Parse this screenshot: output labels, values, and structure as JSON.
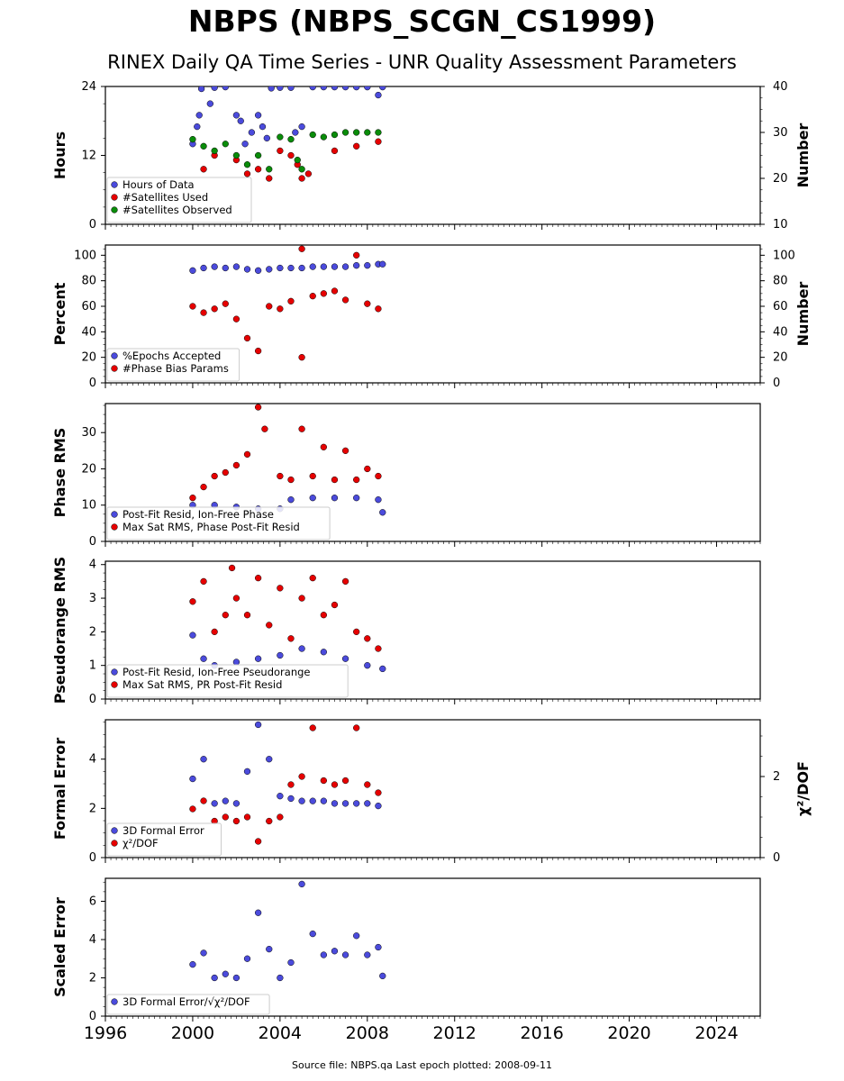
{
  "header": {
    "title": "NBPS (NBPS_SCGN_CS1999)",
    "subtitle": "RINEX Daily QA Time Series - UNR Quality Assessment Parameters"
  },
  "footer": {
    "text": "Source file: NBPS.qa Last epoch plotted: 2008-09-11"
  },
  "colors": {
    "blue": "#4b4bdc",
    "red": "#e60000",
    "green": "#0a8c0a",
    "edge": "#000000"
  },
  "chart_data": [
    {
      "type": "scatter",
      "ylabel": "Hours",
      "y2label": "Number",
      "ylim": [
        0,
        24
      ],
      "y2lim": [
        10,
        40
      ],
      "yticks": [
        "0",
        "12",
        "24"
      ],
      "y2ticks": [
        "10",
        "20",
        "30",
        "40"
      ],
      "legend_position": "lower-left",
      "series": [
        {
          "name": "Hours of Data",
          "color": "#4b4bdc",
          "axis": "left",
          "points": [
            [
              2000.0,
              14
            ],
            [
              2000.2,
              17
            ],
            [
              2000.3,
              19
            ],
            [
              2000.4,
              23.6
            ],
            [
              2000.8,
              21
            ],
            [
              2001.0,
              23.8
            ],
            [
              2001.5,
              23.9
            ],
            [
              2002.0,
              19
            ],
            [
              2002.2,
              18
            ],
            [
              2002.4,
              14
            ],
            [
              2002.7,
              16
            ],
            [
              2003.0,
              19
            ],
            [
              2003.2,
              17
            ],
            [
              2003.4,
              15
            ],
            [
              2003.6,
              23.7
            ],
            [
              2004.0,
              23.8
            ],
            [
              2004.5,
              23.8
            ],
            [
              2004.7,
              16
            ],
            [
              2005.0,
              17
            ],
            [
              2005.5,
              23.9
            ],
            [
              2006.0,
              23.9
            ],
            [
              2006.5,
              23.9
            ],
            [
              2007.0,
              23.9
            ],
            [
              2007.5,
              23.9
            ],
            [
              2008.0,
              23.9
            ],
            [
              2008.5,
              22.5
            ],
            [
              2008.7,
              23.9
            ]
          ]
        },
        {
          "name": "#Satellites Used",
          "color": "#e60000",
          "axis": "right",
          "points": [
            [
              2000.5,
              22
            ],
            [
              2001.0,
              25
            ],
            [
              2002.0,
              24
            ],
            [
              2002.5,
              21
            ],
            [
              2003.0,
              22
            ],
            [
              2003.5,
              20
            ],
            [
              2004.0,
              26
            ],
            [
              2004.5,
              25
            ],
            [
              2004.8,
              23
            ],
            [
              2005.0,
              20
            ],
            [
              2005.3,
              21
            ],
            [
              2006.5,
              26
            ],
            [
              2007.5,
              27
            ],
            [
              2008.5,
              28
            ]
          ]
        },
        {
          "name": "#Satellites Observed",
          "color": "#0a8c0a",
          "axis": "right",
          "points": [
            [
              2000.0,
              28.5
            ],
            [
              2000.5,
              27
            ],
            [
              2001.0,
              26
            ],
            [
              2001.5,
              27.5
            ],
            [
              2002.0,
              25
            ],
            [
              2002.5,
              23
            ],
            [
              2003.0,
              25
            ],
            [
              2003.5,
              22
            ],
            [
              2004.0,
              29
            ],
            [
              2004.5,
              28.5
            ],
            [
              2004.8,
              24
            ],
            [
              2005.0,
              22
            ],
            [
              2005.5,
              29.5
            ],
            [
              2006.0,
              29
            ],
            [
              2006.5,
              29.5
            ],
            [
              2007.0,
              30
            ],
            [
              2007.5,
              30
            ],
            [
              2008.0,
              30
            ],
            [
              2008.5,
              30
            ]
          ]
        }
      ]
    },
    {
      "type": "scatter",
      "ylabel": "Percent",
      "y2label": "Number",
      "ylim": [
        0,
        108
      ],
      "y2lim": [
        0,
        108
      ],
      "yticks": [
        "0",
        "20",
        "40",
        "60",
        "80",
        "100"
      ],
      "y2ticks": [
        "0",
        "20",
        "40",
        "60",
        "80",
        "100"
      ],
      "legend_position": "lower-left",
      "series": [
        {
          "name": "%Epochs Accepted",
          "color": "#4b4bdc",
          "axis": "left",
          "points": [
            [
              2000.0,
              88
            ],
            [
              2000.5,
              90
            ],
            [
              2001.0,
              91
            ],
            [
              2001.5,
              90
            ],
            [
              2002.0,
              91
            ],
            [
              2002.5,
              89
            ],
            [
              2003.0,
              88
            ],
            [
              2003.5,
              89
            ],
            [
              2004.0,
              90
            ],
            [
              2004.5,
              90
            ],
            [
              2005.0,
              90
            ],
            [
              2005.5,
              91
            ],
            [
              2006.0,
              91
            ],
            [
              2006.5,
              91
            ],
            [
              2007.0,
              91
            ],
            [
              2007.5,
              92
            ],
            [
              2008.0,
              92
            ],
            [
              2008.5,
              93
            ],
            [
              2008.7,
              93
            ]
          ]
        },
        {
          "name": "#Phase Bias Params",
          "color": "#e60000",
          "axis": "right",
          "points": [
            [
              2000.0,
              60
            ],
            [
              2000.5,
              55
            ],
            [
              2001.0,
              58
            ],
            [
              2001.5,
              62
            ],
            [
              2002.0,
              50
            ],
            [
              2002.5,
              35
            ],
            [
              2003.0,
              25
            ],
            [
              2003.5,
              60
            ],
            [
              2004.0,
              58
            ],
            [
              2004.5,
              64
            ],
            [
              2005.0,
              20
            ],
            [
              2005.0,
              105
            ],
            [
              2005.5,
              68
            ],
            [
              2006.0,
              70
            ],
            [
              2006.5,
              72
            ],
            [
              2007.0,
              65
            ],
            [
              2007.5,
              100
            ],
            [
              2008.0,
              62
            ],
            [
              2008.5,
              58
            ]
          ]
        }
      ]
    },
    {
      "type": "scatter",
      "ylabel": "Phase RMS",
      "ylim": [
        0,
        38
      ],
      "yticks": [
        "0",
        "10",
        "20",
        "30"
      ],
      "legend_position": "lower-left",
      "series": [
        {
          "name": "Post-Fit Resid, Ion-Free Phase",
          "color": "#4b4bdc",
          "axis": "left",
          "points": [
            [
              2000.0,
              10
            ],
            [
              2001.0,
              10
            ],
            [
              2002.0,
              9.5
            ],
            [
              2003.0,
              9
            ],
            [
              2004.0,
              9
            ],
            [
              2004.5,
              11.5
            ],
            [
              2005.5,
              12
            ],
            [
              2006.5,
              12
            ],
            [
              2007.5,
              12
            ],
            [
              2008.5,
              11.5
            ],
            [
              2008.7,
              8
            ]
          ]
        },
        {
          "name": "Max Sat RMS, Phase Post-Fit Resid",
          "color": "#e60000",
          "axis": "left",
          "points": [
            [
              2000.0,
              12
            ],
            [
              2000.5,
              15
            ],
            [
              2001.0,
              18
            ],
            [
              2001.5,
              19
            ],
            [
              2002.0,
              21
            ],
            [
              2002.5,
              24
            ],
            [
              2003.0,
              37
            ],
            [
              2003.3,
              31
            ],
            [
              2004.0,
              18
            ],
            [
              2004.5,
              17
            ],
            [
              2005.0,
              31
            ],
            [
              2005.5,
              18
            ],
            [
              2006.0,
              26
            ],
            [
              2006.5,
              17
            ],
            [
              2007.0,
              25
            ],
            [
              2007.5,
              17
            ],
            [
              2008.0,
              20
            ],
            [
              2008.5,
              18
            ]
          ]
        }
      ]
    },
    {
      "type": "scatter",
      "ylabel": "Pseudorange RMS",
      "ylim": [
        0,
        4.1
      ],
      "yticks": [
        "0",
        "1",
        "2",
        "3",
        "4"
      ],
      "legend_position": "lower-left",
      "series": [
        {
          "name": "Post-Fit Resid, Ion-Free Pseudorange",
          "color": "#4b4bdc",
          "axis": "left",
          "points": [
            [
              2000.0,
              1.9
            ],
            [
              2000.5,
              1.2
            ],
            [
              2001.0,
              1.0
            ],
            [
              2002.0,
              1.1
            ],
            [
              2003.0,
              1.2
            ],
            [
              2004.0,
              1.3
            ],
            [
              2005.0,
              1.5
            ],
            [
              2006.0,
              1.4
            ],
            [
              2007.0,
              1.2
            ],
            [
              2008.0,
              1.0
            ],
            [
              2008.7,
              0.9
            ]
          ]
        },
        {
          "name": "Max Sat RMS, PR Post-Fit Resid",
          "color": "#e60000",
          "axis": "left",
          "points": [
            [
              2000.0,
              2.9
            ],
            [
              2000.5,
              3.5
            ],
            [
              2001.0,
              2.0
            ],
            [
              2001.5,
              2.5
            ],
            [
              2001.8,
              3.9
            ],
            [
              2002.0,
              3.0
            ],
            [
              2002.5,
              2.5
            ],
            [
              2003.0,
              3.6
            ],
            [
              2003.5,
              2.2
            ],
            [
              2004.0,
              3.3
            ],
            [
              2004.5,
              1.8
            ],
            [
              2005.0,
              3.0
            ],
            [
              2005.5,
              3.6
            ],
            [
              2006.0,
              2.5
            ],
            [
              2006.5,
              2.8
            ],
            [
              2007.0,
              3.5
            ],
            [
              2007.5,
              2.0
            ],
            [
              2008.0,
              1.8
            ],
            [
              2008.5,
              1.5
            ]
          ]
        }
      ]
    },
    {
      "type": "scatter",
      "ylabel": "Formal Error",
      "y2label": "χ²/DOF",
      "ylim": [
        0,
        5.6
      ],
      "y2lim": [
        0,
        3.4
      ],
      "yticks": [
        "0",
        "2",
        "4"
      ],
      "y2ticks": [
        "0",
        "2"
      ],
      "legend_position": "lower-left",
      "series": [
        {
          "name": "3D Formal Error",
          "color": "#4b4bdc",
          "axis": "left",
          "points": [
            [
              2000.0,
              3.2
            ],
            [
              2000.5,
              4.0
            ],
            [
              2001.0,
              2.2
            ],
            [
              2001.5,
              2.3
            ],
            [
              2002.0,
              2.2
            ],
            [
              2002.5,
              3.5
            ],
            [
              2003.0,
              5.4
            ],
            [
              2003.5,
              4.0
            ],
            [
              2004.0,
              2.5
            ],
            [
              2004.5,
              2.4
            ],
            [
              2005.0,
              2.3
            ],
            [
              2005.5,
              2.3
            ],
            [
              2006.0,
              2.3
            ],
            [
              2006.5,
              2.2
            ],
            [
              2007.0,
              2.2
            ],
            [
              2007.5,
              2.2
            ],
            [
              2008.0,
              2.2
            ],
            [
              2008.5,
              2.1
            ]
          ]
        },
        {
          "name": "χ²/DOF",
          "color": "#e60000",
          "axis": "right",
          "points": [
            [
              2000.0,
              1.2
            ],
            [
              2000.5,
              1.4
            ],
            [
              2001.0,
              0.9
            ],
            [
              2001.5,
              1.0
            ],
            [
              2002.0,
              0.9
            ],
            [
              2002.5,
              1.0
            ],
            [
              2003.0,
              0.4
            ],
            [
              2003.5,
              0.9
            ],
            [
              2004.0,
              1.0
            ],
            [
              2004.5,
              1.8
            ],
            [
              2005.0,
              2.0
            ],
            [
              2005.5,
              3.2
            ],
            [
              2006.0,
              1.9
            ],
            [
              2006.5,
              1.8
            ],
            [
              2007.0,
              1.9
            ],
            [
              2007.5,
              3.2
            ],
            [
              2008.0,
              1.8
            ],
            [
              2008.5,
              1.6
            ]
          ]
        }
      ]
    },
    {
      "type": "scatter",
      "ylabel": "Scaled Error",
      "ylim": [
        0,
        7.2
      ],
      "yticks": [
        "0",
        "2",
        "4",
        "6"
      ],
      "legend_position": "lower-left",
      "series": [
        {
          "name": "3D Formal Error/√χ²/DOF",
          "color": "#4b4bdc",
          "axis": "left",
          "points": [
            [
              2000.0,
              2.7
            ],
            [
              2000.5,
              3.3
            ],
            [
              2001.0,
              2.0
            ],
            [
              2001.5,
              2.2
            ],
            [
              2002.0,
              2.0
            ],
            [
              2002.5,
              3.0
            ],
            [
              2003.0,
              5.4
            ],
            [
              2003.5,
              3.5
            ],
            [
              2004.0,
              2.0
            ],
            [
              2004.5,
              2.8
            ],
            [
              2005.0,
              6.9
            ],
            [
              2005.5,
              4.3
            ],
            [
              2006.0,
              3.2
            ],
            [
              2006.5,
              3.4
            ],
            [
              2007.0,
              3.2
            ],
            [
              2007.5,
              4.2
            ],
            [
              2008.0,
              3.2
            ],
            [
              2008.5,
              3.6
            ],
            [
              2008.7,
              2.1
            ]
          ]
        }
      ]
    }
  ],
  "xaxis": {
    "xlim": [
      1996.0,
      2026.0
    ],
    "ticks": [
      "1996",
      "2000",
      "2004",
      "2008",
      "2012",
      "2016",
      "2020",
      "2024"
    ]
  }
}
